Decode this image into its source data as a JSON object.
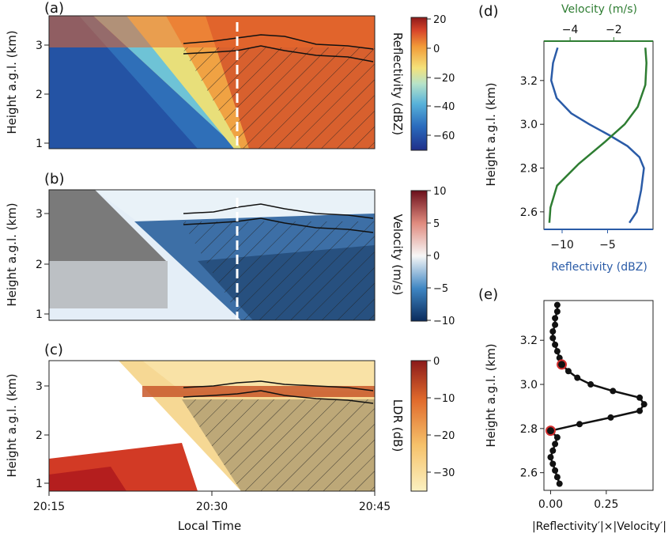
{
  "panels": {
    "a": {
      "tag": "(a)",
      "ylabel": "Height a.g.l. (km)",
      "cbar_label": "Reflectivity (dBZ)",
      "cbar_ticks": [
        "20",
        "0",
        "−20",
        "−40",
        "−60"
      ]
    },
    "b": {
      "tag": "(b)",
      "ylabel": "Height a.g.l. (km)",
      "cbar_label": "Velocity (m/s)",
      "cbar_ticks": [
        "10",
        "5",
        "0",
        "−5",
        "−10"
      ]
    },
    "c": {
      "tag": "(c)",
      "ylabel": "Height a.g.l. (km)",
      "cbar_label": "LDR (dB)",
      "cbar_ticks": [
        "0",
        "−10",
        "−20",
        "−30"
      ]
    },
    "d": {
      "tag": "(d)",
      "ylabel": "Height a.g.l. (km)",
      "top_label": "Velocity (m/s)",
      "bottom_label": "Reflectivity (dBZ)"
    },
    "e": {
      "tag": "(e)",
      "ylabel": "Height a.g.l. (km)",
      "xlabel": "|Reflectivity′|×|Velocity′|"
    }
  },
  "time_axis": {
    "xlabel": "Local Time",
    "ticks": [
      "20:15",
      "20:30",
      "20:45"
    ]
  },
  "height_ticks_left": [
    "1",
    "2",
    "3"
  ],
  "colors": {
    "reflectivity": "#2a5ba7",
    "velocity": "#2e7d32",
    "points": "#111111",
    "highlight": "#d32f2f"
  },
  "chart_data": [
    {
      "panel": "d",
      "type": "line",
      "y_label": "Height a.g.l. (km)",
      "ylim": [
        2.52,
        3.38
      ],
      "yticks": [
        "2.6",
        "2.8",
        "3.0",
        "3.2"
      ],
      "series": [
        {
          "name": "Reflectivity (dBZ)",
          "axis": "bottom",
          "xlim": [
            -12,
            0
          ],
          "xticks": [
            "−10",
            "−5"
          ],
          "xtick_values": [
            -10,
            -5
          ],
          "points": [
            [
              -2.6,
              2.55
            ],
            [
              -1.8,
              2.6
            ],
            [
              -1.3,
              2.7
            ],
            [
              -1.0,
              2.8
            ],
            [
              -1.5,
              2.85
            ],
            [
              -2.8,
              2.9
            ],
            [
              -4.8,
              2.95
            ],
            [
              -7.0,
              3.0
            ],
            [
              -9.0,
              3.05
            ],
            [
              -10.6,
              3.12
            ],
            [
              -11.2,
              3.2
            ],
            [
              -11.0,
              3.28
            ],
            [
              -10.5,
              3.35
            ]
          ]
        },
        {
          "name": "Velocity (m/s)",
          "axis": "top",
          "xlim": [
            -5.2,
            -0.2
          ],
          "xticks": [
            "−4",
            "−2"
          ],
          "xtick_values": [
            -4,
            -2
          ],
          "points": [
            [
              -4.95,
              2.55
            ],
            [
              -4.9,
              2.62
            ],
            [
              -4.6,
              2.72
            ],
            [
              -3.6,
              2.82
            ],
            [
              -2.4,
              2.92
            ],
            [
              -1.5,
              3.0
            ],
            [
              -0.9,
              3.08
            ],
            [
              -0.55,
              3.18
            ],
            [
              -0.5,
              3.28
            ],
            [
              -0.55,
              3.35
            ]
          ]
        }
      ]
    },
    {
      "panel": "e",
      "type": "line",
      "xlabel": "|Reflectivity′|×|Velocity′|",
      "xlim": [
        -0.03,
        0.46
      ],
      "xticks": [
        "0.00",
        "0.25"
      ],
      "xtick_values": [
        0.0,
        0.25
      ],
      "ylim": [
        2.52,
        3.38
      ],
      "yticks": [
        "2.6",
        "2.8",
        "3.0",
        "3.2"
      ],
      "points": [
        [
          0.04,
          2.55
        ],
        [
          0.03,
          2.58
        ],
        [
          0.02,
          2.61
        ],
        [
          0.01,
          2.64
        ],
        [
          0.0,
          2.67
        ],
        [
          0.01,
          2.7
        ],
        [
          0.02,
          2.73
        ],
        [
          0.03,
          2.76
        ],
        [
          0.0,
          2.79
        ],
        [
          0.13,
          2.82
        ],
        [
          0.27,
          2.85
        ],
        [
          0.4,
          2.88
        ],
        [
          0.42,
          2.91
        ],
        [
          0.4,
          2.94
        ],
        [
          0.28,
          2.97
        ],
        [
          0.18,
          3.0
        ],
        [
          0.12,
          3.03
        ],
        [
          0.08,
          3.06
        ],
        [
          0.05,
          3.09
        ],
        [
          0.04,
          3.12
        ],
        [
          0.03,
          3.15
        ],
        [
          0.02,
          3.18
        ],
        [
          0.01,
          3.21
        ],
        [
          0.01,
          3.24
        ],
        [
          0.02,
          3.27
        ],
        [
          0.02,
          3.3
        ],
        [
          0.03,
          3.33
        ],
        [
          0.03,
          3.36
        ]
      ],
      "highlighted_points": [
        [
          0.0,
          2.79
        ],
        [
          0.05,
          3.09
        ]
      ]
    }
  ]
}
